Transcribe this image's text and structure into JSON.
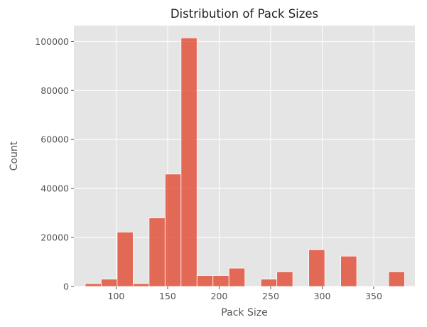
{
  "chart_data": {
    "type": "bar",
    "title": "Distribution of Pack Sizes",
    "xlabel": "Pack Size",
    "ylabel": "Count",
    "xlim": [
      59,
      390
    ],
    "ylim": [
      0,
      106500
    ],
    "x_ticks": [
      100,
      150,
      200,
      250,
      300,
      350
    ],
    "y_ticks": [
      0,
      20000,
      40000,
      60000,
      80000,
      100000
    ],
    "grid": true,
    "bar_color": "#E24A33",
    "plot_background": "#E5E5E5",
    "bins": [
      {
        "start": 70,
        "end": 85.5,
        "count": 1200
      },
      {
        "start": 85.5,
        "end": 101,
        "count": 3000
      },
      {
        "start": 101,
        "end": 116.5,
        "count": 22200
      },
      {
        "start": 116.5,
        "end": 132,
        "count": 1200
      },
      {
        "start": 132,
        "end": 147.5,
        "count": 28000
      },
      {
        "start": 147.5,
        "end": 163,
        "count": 45900
      },
      {
        "start": 163,
        "end": 178.5,
        "count": 101500
      },
      {
        "start": 178.5,
        "end": 194,
        "count": 4500
      },
      {
        "start": 194,
        "end": 209.5,
        "count": 4500
      },
      {
        "start": 209.5,
        "end": 225,
        "count": 7500
      },
      {
        "start": 225,
        "end": 240.5,
        "count": 0
      },
      {
        "start": 240.5,
        "end": 256,
        "count": 3000
      },
      {
        "start": 256,
        "end": 271.5,
        "count": 6000
      },
      {
        "start": 271.5,
        "end": 287,
        "count": 0
      },
      {
        "start": 287,
        "end": 302.5,
        "count": 15000
      },
      {
        "start": 302.5,
        "end": 318,
        "count": 0
      },
      {
        "start": 318,
        "end": 333.5,
        "count": 12400
      },
      {
        "start": 333.5,
        "end": 349,
        "count": 0
      },
      {
        "start": 349,
        "end": 364.5,
        "count": 0
      },
      {
        "start": 364.5,
        "end": 380,
        "count": 6000
      }
    ]
  }
}
